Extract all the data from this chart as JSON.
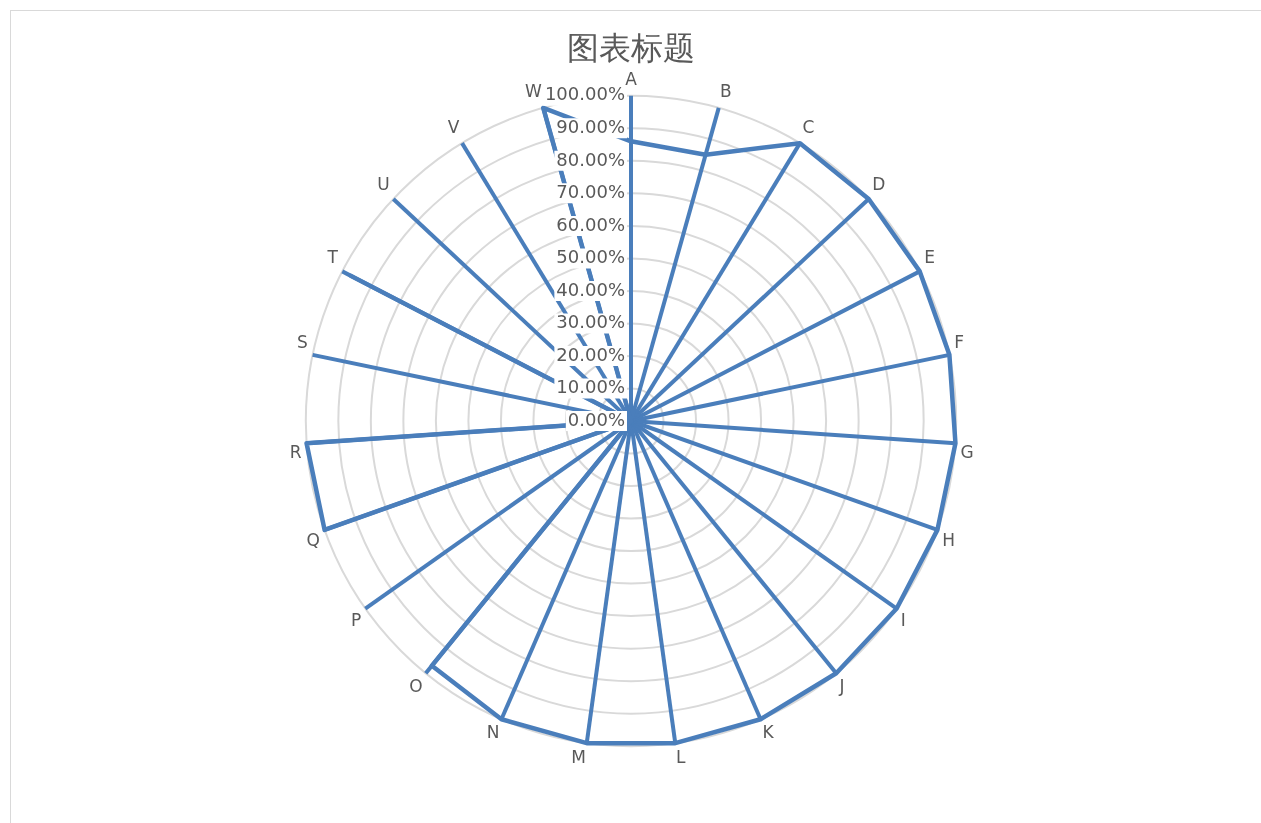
{
  "chart_data": {
    "type": "radar",
    "title": "图表标题",
    "categories": [
      "A",
      "B",
      "C",
      "D",
      "E",
      "F",
      "G",
      "H",
      "I",
      "J",
      "K",
      "L",
      "M",
      "N",
      "O",
      "P",
      "Q",
      "R",
      "S",
      "T",
      "U",
      "V",
      "W"
    ],
    "series": [
      {
        "color": "#4a7ebb",
        "values": [
          86,
          85,
          100,
          100,
          100,
          100,
          100,
          100,
          100,
          100,
          100,
          100,
          100,
          100,
          97,
          0,
          100,
          100,
          0,
          97,
          0,
          0,
          100
        ]
      }
    ],
    "ylim": [
      0,
      100
    ],
    "yticks": [
      {
        "value": 0,
        "label": "0.00%"
      },
      {
        "value": 10,
        "label": "10.00%"
      },
      {
        "value": 20,
        "label": "20.00%"
      },
      {
        "value": 30,
        "label": "30.00%"
      },
      {
        "value": 40,
        "label": "40.00%"
      },
      {
        "value": 50,
        "label": "50.00%"
      },
      {
        "value": 60,
        "label": "60.00%"
      },
      {
        "value": 70,
        "label": "70.00%"
      },
      {
        "value": 80,
        "label": "80.00%"
      },
      {
        "value": 90,
        "label": "90.00%"
      },
      {
        "value": 100,
        "label": "100.00%"
      }
    ],
    "grid": true,
    "legend": false,
    "marker": "none",
    "line_style": "solid"
  }
}
